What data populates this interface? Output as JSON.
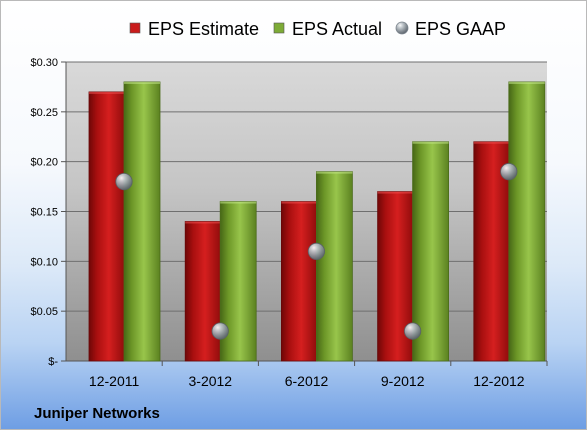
{
  "chart_data": {
    "type": "bar",
    "categories": [
      "12-2011",
      "3-2012",
      "6-2012",
      "9-2012",
      "12-2012"
    ],
    "series": [
      {
        "name": "EPS Estimate",
        "values": [
          0.27,
          0.14,
          0.16,
          0.17,
          0.22
        ],
        "color": "#c91c1c"
      },
      {
        "name": "EPS Actual",
        "values": [
          0.28,
          0.16,
          0.19,
          0.22,
          0.28
        ],
        "color": "#7dab37"
      },
      {
        "name": "EPS GAAP",
        "values": [
          0.18,
          0.03,
          0.11,
          0.03,
          0.19
        ],
        "color": "#9aa4ad",
        "marker": "sphere"
      }
    ],
    "ylim": [
      0,
      0.3
    ],
    "yticks": [
      0,
      0.05,
      0.1,
      0.15,
      0.2,
      0.25,
      0.3
    ],
    "ytick_labels": [
      "$-",
      "$0.05",
      "$0.10",
      "$0.15",
      "$0.20",
      "$0.25",
      "$0.30"
    ],
    "legend_position": "top",
    "grid": true,
    "plot_background": "gray-gradient",
    "footer": "Juniper Networks"
  }
}
